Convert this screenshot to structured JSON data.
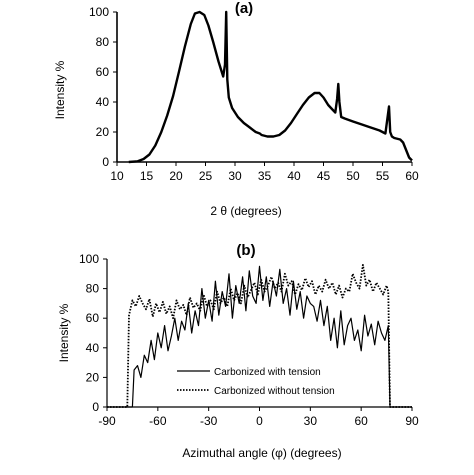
{
  "chart_data": [
    {
      "panel_label": "(a)",
      "type": "line",
      "xlabel": "2 θ (degrees)",
      "ylabel": "Intensity %",
      "xlim": [
        10,
        60
      ],
      "ylim": [
        0,
        100
      ],
      "xticks": [
        10,
        15,
        20,
        25,
        30,
        35,
        40,
        45,
        50,
        55,
        60
      ],
      "yticks": [
        0,
        20,
        40,
        60,
        80,
        100
      ],
      "grid": false,
      "series": [
        {
          "style": "solid",
          "x": [
            12,
            13.5,
            14.5,
            15.5,
            16.5,
            17.5,
            18.5,
            19.5,
            20.5,
            21.5,
            22.5,
            23.2,
            24,
            24.8,
            25.5,
            26.3,
            27.2,
            28.0,
            28.3,
            28.5,
            28.7,
            28.95,
            29.5,
            30.5,
            31.5,
            32.5,
            33.5,
            34.2,
            34.5,
            35.5,
            36.5,
            37.5,
            38.5,
            39.5,
            40.5,
            41.5,
            42.5,
            43.5,
            44.3,
            45,
            45.8,
            46.5,
            47.0,
            47.3,
            47.5,
            47.7,
            48.0,
            48.6,
            50,
            51.5,
            53,
            54.5,
            55.5,
            55.9,
            56.1,
            56.3,
            56.6,
            57,
            58,
            58.5,
            59,
            59.5,
            60
          ],
          "y": [
            0,
            0.5,
            2,
            5,
            11,
            20,
            31,
            44,
            60,
            77,
            92,
            99,
            100,
            98,
            91,
            80,
            67,
            57,
            65,
            100,
            55,
            43,
            36,
            30,
            26,
            23,
            20,
            19,
            18,
            17,
            17,
            18,
            21,
            26,
            32,
            38,
            43,
            46,
            46,
            43,
            38,
            35,
            33,
            42,
            52,
            40,
            30,
            29,
            27,
            25,
            23,
            21,
            19,
            31,
            37,
            20,
            17,
            16,
            15,
            13,
            8,
            3,
            1
          ]
        }
      ]
    },
    {
      "panel_label": "(b)",
      "type": "line",
      "xlabel": "Azimuthal angle (φ) (degrees)",
      "ylabel": "Intensity %",
      "xlim": [
        -90,
        90
      ],
      "ylim": [
        0,
        100
      ],
      "xticks": [
        -90,
        -60,
        -30,
        0,
        30,
        60,
        90
      ],
      "yticks": [
        0,
        20,
        40,
        60,
        80,
        100
      ],
      "grid": false,
      "legend_position": "bottom-center",
      "series": [
        {
          "name": "Carbonized with tension",
          "style": "solid",
          "x": [
            -90,
            -75,
            -74,
            -72,
            -70,
            -68,
            -66,
            -64,
            -62,
            -60,
            -58,
            -56,
            -54,
            -52,
            -50,
            -48,
            -46,
            -44,
            -42,
            -40,
            -38,
            -36,
            -34,
            -32,
            -30,
            -28,
            -26,
            -24,
            -22,
            -20,
            -18,
            -16,
            -14,
            -12,
            -10,
            -8,
            -6,
            -4,
            -2,
            0,
            2,
            4,
            6,
            8,
            10,
            12,
            14,
            16,
            18,
            20,
            22,
            24,
            26,
            28,
            30,
            32,
            34,
            36,
            38,
            40,
            42,
            44,
            46,
            48,
            50,
            52,
            54,
            56,
            58,
            60,
            62,
            64,
            66,
            68,
            70,
            72,
            74,
            76,
            77,
            90
          ],
          "y": [
            0,
            0,
            25,
            28,
            20,
            35,
            30,
            45,
            32,
            50,
            40,
            55,
            38,
            48,
            60,
            45,
            58,
            52,
            70,
            50,
            65,
            55,
            80,
            60,
            72,
            58,
            85,
            62,
            78,
            68,
            90,
            60,
            82,
            70,
            88,
            65,
            92,
            75,
            70,
            95,
            72,
            88,
            68,
            85,
            75,
            93,
            70,
            80,
            62,
            85,
            66,
            78,
            60,
            75,
            70,
            68,
            58,
            72,
            55,
            68,
            45,
            60,
            40,
            65,
            42,
            55,
            60,
            45,
            52,
            38,
            62,
            48,
            56,
            42,
            58,
            50,
            45,
            55,
            0,
            0
          ]
        },
        {
          "name": "Carbonized without tension",
          "style": "dotted",
          "x": [
            -90,
            -78,
            -77,
            -75,
            -73,
            -71,
            -69,
            -67,
            -65,
            -63,
            -61,
            -59,
            -57,
            -55,
            -53,
            -51,
            -49,
            -47,
            -45,
            -43,
            -41,
            -39,
            -37,
            -35,
            -33,
            -31,
            -29,
            -27,
            -25,
            -23,
            -21,
            -19,
            -17,
            -15,
            -13,
            -11,
            -9,
            -7,
            -5,
            -3,
            -1,
            1,
            3,
            5,
            7,
            9,
            11,
            13,
            15,
            17,
            19,
            21,
            23,
            25,
            27,
            29,
            31,
            33,
            35,
            37,
            39,
            41,
            43,
            45,
            47,
            49,
            51,
            53,
            55,
            57,
            59,
            61,
            63,
            65,
            67,
            69,
            71,
            73,
            75,
            76,
            77,
            90
          ],
          "y": [
            0,
            0,
            62,
            72,
            68,
            75,
            70,
            66,
            73,
            61,
            70,
            64,
            71,
            63,
            68,
            60,
            72,
            66,
            69,
            62,
            74,
            67,
            70,
            65,
            76,
            68,
            72,
            66,
            78,
            70,
            74,
            68,
            80,
            72,
            77,
            70,
            82,
            74,
            79,
            84,
            76,
            86,
            78,
            82,
            88,
            80,
            84,
            78,
            90,
            82,
            85,
            76,
            83,
            79,
            87,
            81,
            85,
            76,
            82,
            78,
            86,
            80,
            84,
            76,
            82,
            74,
            80,
            78,
            90,
            84,
            80,
            96,
            82,
            86,
            78,
            84,
            80,
            76,
            82,
            78,
            0,
            0
          ]
        }
      ]
    }
  ]
}
